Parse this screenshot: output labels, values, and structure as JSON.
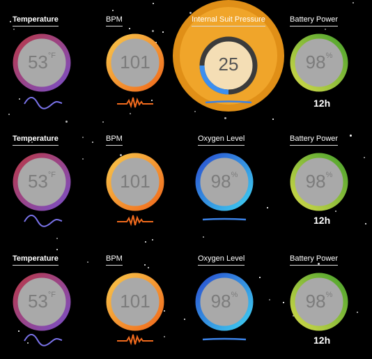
{
  "colors": {
    "background": "#000000",
    "dial_face": "#a9a9a9",
    "value_text": "#7c7c7c",
    "temperature_ring": [
      "#b8394a",
      "#7a4fc6"
    ],
    "bpm_ring": [
      "#f7c54a",
      "#f06a1d"
    ],
    "battery_ring": [
      "#c8d94a",
      "#4aa32d"
    ],
    "oxygen_ring": [
      "#2a5ad7",
      "#3fc3ee"
    ],
    "pressure_halo": "#f0a52a",
    "pressure_face": "#f4deb5",
    "pressure_track": "#3b3b3b",
    "pressure_progress": "#3b8ff0",
    "waveform_purple": "#7a73ea",
    "waveform_orange": "#f06a1d",
    "waveform_blue": "#3b82e6"
  },
  "rows": [
    {
      "temperature": {
        "label": "Temperature",
        "value": "53",
        "unit": "°F",
        "icon": "temperature-waveform-icon"
      },
      "bpm": {
        "label": "BPM",
        "value": "101",
        "icon": "heartbeat-waveform-icon"
      },
      "pressure": {
        "label": "Internal Suit Pressure",
        "value": "25",
        "progress": 0.25,
        "icon": "pressure-wave-icon"
      },
      "battery": {
        "label": "Battery Power",
        "value": "98",
        "unit": "%",
        "hours": "12h"
      }
    },
    {
      "temperature": {
        "label": "Temperature",
        "value": "53",
        "unit": "°F",
        "icon": "temperature-waveform-icon"
      },
      "bpm": {
        "label": "BPM",
        "value": "101",
        "icon": "heartbeat-waveform-icon"
      },
      "oxygen": {
        "label": "Oxygen Level",
        "value": "98",
        "unit": "%",
        "icon": "oxygen-wave-icon"
      },
      "battery": {
        "label": "Battery Power",
        "value": "98",
        "unit": "%",
        "hours": "12h"
      }
    },
    {
      "temperature": {
        "label": "Temperature",
        "value": "53",
        "unit": "°F",
        "icon": "temperature-waveform-icon"
      },
      "bpm": {
        "label": "BPM",
        "value": "101",
        "icon": "heartbeat-waveform-icon"
      },
      "oxygen": {
        "label": "Oxygen Level",
        "value": "98",
        "unit": "%",
        "icon": "oxygen-wave-icon"
      },
      "battery": {
        "label": "Battery Power",
        "value": "98",
        "unit": "%",
        "hours": "12h"
      }
    }
  ]
}
